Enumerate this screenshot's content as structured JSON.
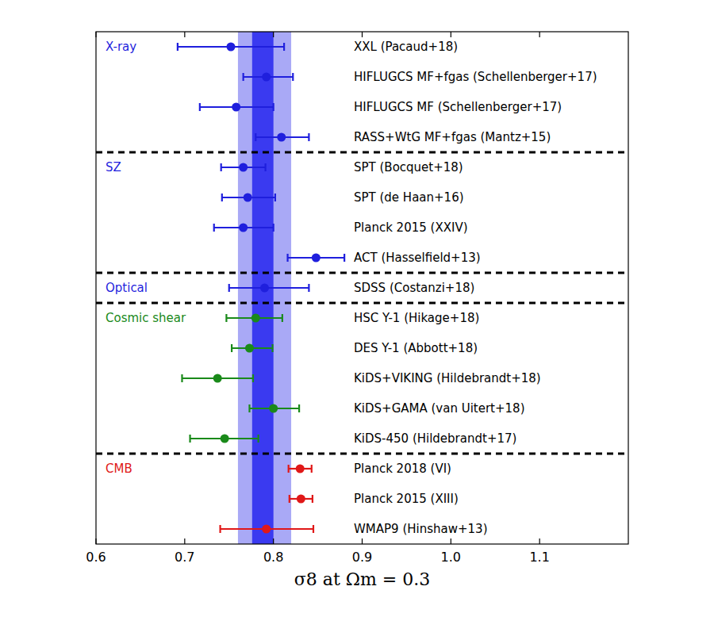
{
  "chart_data": {
    "type": "forest",
    "xlabel": "σ8 at Ωm = 0.3",
    "xlim": [
      0.6,
      1.2
    ],
    "xticks": [
      0.6,
      0.7,
      0.8,
      0.9,
      {
        "value": 1,
        "label": "1.0"
      },
      1.1
    ],
    "band": {
      "inner": [
        0.776,
        0.8
      ],
      "outer": [
        0.76,
        0.82
      ]
    },
    "series": [
      {
        "name": "X-ray",
        "color": "#1f1fdd",
        "categories": [
          "XXL (Pacaud+18)",
          "HIFLUGCS MF+fgas (Schellenberger+17)",
          "HIFLUGCS MF (Schellenberger+17)",
          "RASS+WtG MF+fgas (Mantz+15)"
        ],
        "values": [
          0.752,
          0.792,
          0.758,
          0.809
        ],
        "err_low": [
          0.06,
          0.026,
          0.041,
          0.029
        ],
        "err_high": [
          0.06,
          0.03,
          0.042,
          0.031
        ]
      },
      {
        "name": "SZ",
        "color": "#1f1fdd",
        "categories": [
          "SPT (Bocquet+18)",
          "SPT (de Haan+16)",
          "Planck 2015 (XXIV)",
          "ACT (Hasselfield+13)"
        ],
        "values": [
          0.766,
          0.771,
          0.766,
          0.848
        ],
        "err_low": [
          0.025,
          0.029,
          0.033,
          0.032
        ],
        "err_high": [
          0.025,
          0.031,
          0.034,
          0.032
        ]
      },
      {
        "name": "Optical",
        "color": "#1f1fdd",
        "categories": [
          "SDSS (Costanzi+18)"
        ],
        "values": [
          0.79
        ],
        "err_low": [
          0.04
        ],
        "err_high": [
          0.05
        ]
      },
      {
        "name": "Cosmic shear",
        "color": "#1a8a1a",
        "categories": [
          "HSC Y-1 (Hikage+18)",
          "DES Y-1 (Abbott+18)",
          "KiDS+VIKING (Hildebrandt+18)",
          "KiDS+GAMA (van Uitert+18)",
          "KiDS-450 (Hildebrandt+17)"
        ],
        "values": [
          0.78,
          0.773,
          0.737,
          0.8,
          0.745
        ],
        "err_low": [
          0.033,
          0.02,
          0.04,
          0.027,
          0.039
        ],
        "err_high": [
          0.03,
          0.026,
          0.04,
          0.029,
          0.038
        ]
      },
      {
        "name": "CMB",
        "color": "#e01818",
        "categories": [
          "Planck 2018 (VI)",
          "Planck 2015 (XIII)",
          "WMAP9 (Hinshaw+13)"
        ],
        "values": [
          0.83,
          0.831,
          0.792
        ],
        "err_low": [
          0.013,
          0.013,
          0.052
        ],
        "err_high": [
          0.013,
          0.013,
          0.053
        ]
      }
    ]
  }
}
